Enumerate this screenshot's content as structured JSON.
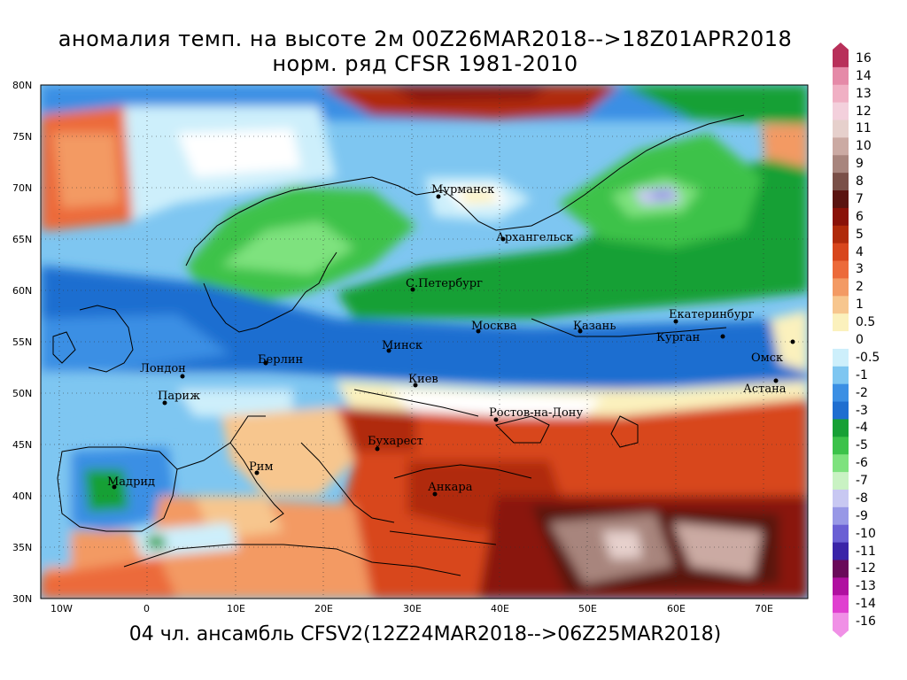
{
  "title": {
    "line1": "аномалия темп. на высоте 2м 00Z26MAR2018-->18Z01APR2018",
    "line2": "норм. ряд CFSR 1981-2010"
  },
  "footer": "04 чл. ансамбль CFSV2(12Z24MAR2018-->06Z25MAR2018)",
  "axes": {
    "lat_labels": [
      "80N",
      "75N",
      "70N",
      "65N",
      "60N",
      "55N",
      "50N",
      "45N",
      "40N",
      "35N",
      "30N"
    ],
    "lon_labels": [
      "10W",
      "0",
      "10E",
      "20E",
      "30E",
      "40E",
      "50E",
      "60E",
      "70E"
    ]
  },
  "cities": [
    {
      "name": "Мурманск"
    },
    {
      "name": "Архангельск"
    },
    {
      "name": "С.Петербург"
    },
    {
      "name": "Москва"
    },
    {
      "name": "Казань"
    },
    {
      "name": "Екатеринбург"
    },
    {
      "name": "Курган"
    },
    {
      "name": "Омск"
    },
    {
      "name": "Астана"
    },
    {
      "name": "Минск"
    },
    {
      "name": "Берлин"
    },
    {
      "name": "Лондон"
    },
    {
      "name": "Париж"
    },
    {
      "name": "Киев"
    },
    {
      "name": "Ростов-на-Дону"
    },
    {
      "name": "Бухарест"
    },
    {
      "name": "Рим"
    },
    {
      "name": "Мадрид"
    },
    {
      "name": "Анкара"
    }
  ],
  "colorbar": {
    "labels": [
      "16",
      "14",
      "13",
      "12",
      "11",
      "10",
      "9",
      "8",
      "7",
      "6",
      "5",
      "4",
      "3",
      "2",
      "1",
      "0.5",
      "0",
      "-0.5",
      "-1",
      "-2",
      "-3",
      "-4",
      "-5",
      "-6",
      "-7",
      "-8",
      "-9",
      "-10",
      "-11",
      "-12",
      "-13",
      "-14",
      "-16"
    ],
    "colors": [
      "#b8305a",
      "#e58aa8",
      "#f0b0c4",
      "#f3d0dc",
      "#e6d0cc",
      "#cbaaa3",
      "#a8857d",
      "#7a5048",
      "#5a1410",
      "#8a1208",
      "#b02a0a",
      "#d8461c",
      "#ec6a3a",
      "#f39a64",
      "#f7c68e",
      "#fbf1bd",
      "#ffffff",
      "#cdeffb",
      "#7ec6f1",
      "#3b8fe4",
      "#1f6ed0",
      "#17a035",
      "#3cc24a",
      "#7ee27e",
      "#c9f2c3",
      "#c8c8f2",
      "#9898e6",
      "#6a5fd4",
      "#3a24a8",
      "#6a0a5a",
      "#b010a0",
      "#e040d0",
      "#f090e6"
    ]
  }
}
